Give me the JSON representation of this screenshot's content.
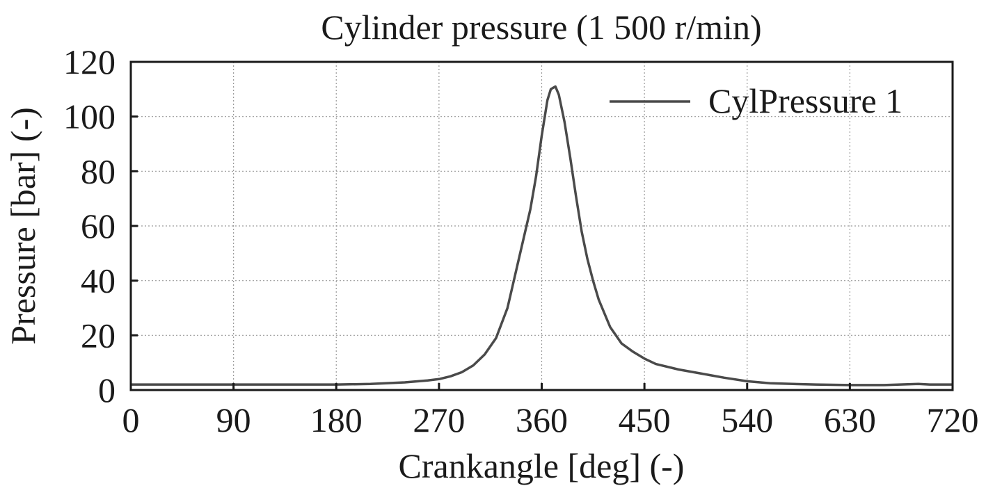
{
  "chart_data": {
    "type": "line",
    "title": "Cylinder pressure (1 500 r/min)",
    "xlabel": "Crankangle [deg] (-)",
    "ylabel": "Pressure [bar] (-)",
    "xlim": [
      0,
      720
    ],
    "ylim": [
      0,
      120
    ],
    "x_ticks": [
      0,
      90,
      180,
      270,
      360,
      450,
      540,
      630,
      720
    ],
    "y_ticks": [
      0,
      20,
      40,
      60,
      80,
      100,
      120
    ],
    "x_tick_labels": [
      "0",
      "90",
      "180",
      "270",
      "360",
      "450",
      "540",
      "630",
      "720"
    ],
    "y_tick_labels": [
      "0",
      "20",
      "40",
      "60",
      "80",
      "100",
      "120"
    ],
    "grid": true,
    "legend_position": "top-right",
    "colors": {
      "series": "#4a4a4a",
      "frame": "#1a1a1a",
      "grid": "#9a9a9a"
    },
    "series": [
      {
        "name": "CylPressure 1",
        "x": [
          0,
          90,
          180,
          210,
          240,
          260,
          270,
          280,
          290,
          300,
          310,
          320,
          330,
          340,
          350,
          355,
          360,
          365,
          368,
          372,
          375,
          380,
          385,
          390,
          395,
          400,
          405,
          410,
          420,
          430,
          440,
          450,
          460,
          480,
          500,
          520,
          540,
          560,
          580,
          600,
          630,
          660,
          690,
          700,
          720
        ],
        "y": [
          2,
          2,
          2,
          2.2,
          2.8,
          3.5,
          4,
          5,
          6.5,
          9,
          13,
          19,
          30,
          48,
          66,
          78,
          93,
          106,
          110,
          111,
          108,
          98,
          85,
          71,
          58,
          48,
          40,
          33,
          23,
          17,
          14,
          11.5,
          9.5,
          7.5,
          6,
          4.5,
          3.2,
          2.5,
          2.2,
          2,
          1.8,
          1.8,
          2.2,
          2,
          2
        ]
      }
    ]
  }
}
